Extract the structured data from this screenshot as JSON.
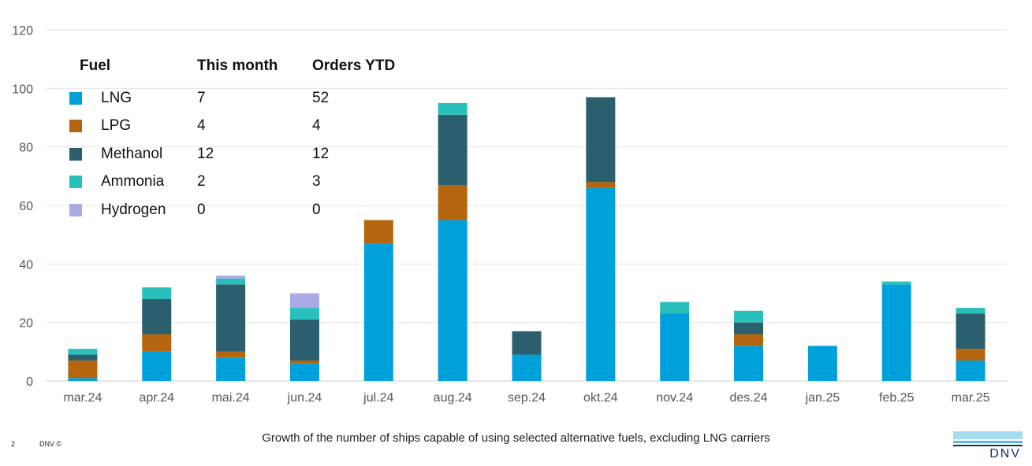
{
  "chart_data": {
    "type": "bar",
    "stacked": true,
    "categories": [
      "mar.24",
      "apr.24",
      "mai.24",
      "jun.24",
      "jul.24",
      "aug.24",
      "sep.24",
      "okt.24",
      "nov.24",
      "des.24",
      "jan.25",
      "feb.25",
      "mar.25"
    ],
    "series": [
      {
        "name": "LNG",
        "color": "#00a0db",
        "values": [
          1,
          10,
          8,
          6,
          47,
          55,
          9,
          66,
          23,
          12,
          12,
          33,
          7
        ]
      },
      {
        "name": "LPG",
        "color": "#b5650d",
        "values": [
          6,
          6,
          2,
          1,
          8,
          12,
          0,
          2,
          0,
          4,
          0,
          0,
          4
        ]
      },
      {
        "name": "Methanol",
        "color": "#2b5f6e",
        "values": [
          2,
          12,
          23,
          14,
          0,
          24,
          8,
          29,
          0,
          4,
          0,
          0,
          12
        ]
      },
      {
        "name": "Ammonia",
        "color": "#29c0bb",
        "values": [
          2,
          4,
          2,
          4,
          0,
          4,
          0,
          0,
          4,
          4,
          0,
          1,
          2
        ]
      },
      {
        "name": "Hydrogen",
        "color": "#a9a9e6",
        "values": [
          0,
          0,
          1,
          5,
          0,
          0,
          0,
          0,
          0,
          0,
          0,
          0,
          0
        ]
      }
    ],
    "ylim": [
      0,
      120
    ],
    "yticks": [
      "0",
      "20",
      "40",
      "60",
      "80",
      "100",
      "120"
    ],
    "grid": true,
    "xlabel": "",
    "ylabel": ""
  },
  "legend": {
    "header": {
      "fuel": "Fuel",
      "this_month": "This month",
      "orders_ytd": "Orders YTD"
    },
    "rows": [
      {
        "name": "LNG",
        "this_month": "7",
        "orders_ytd": "52",
        "color": "#00a0db"
      },
      {
        "name": "LPG",
        "this_month": "4",
        "orders_ytd": "4",
        "color": "#b5650d"
      },
      {
        "name": "Methanol",
        "this_month": "12",
        "orders_ytd": "12",
        "color": "#2b5f6e"
      },
      {
        "name": "Ammonia",
        "this_month": "2",
        "orders_ytd": "3",
        "color": "#29c0bb"
      },
      {
        "name": "Hydrogen",
        "this_month": "0",
        "orders_ytd": "0",
        "color": "#a9a9e6"
      }
    ]
  },
  "footer": {
    "caption": "Growth of the number of ships capable of using selected alternative fuels, excluding LNG carriers",
    "page_number": "2",
    "copyright": "DNV ©",
    "logo_text": "DNV"
  }
}
